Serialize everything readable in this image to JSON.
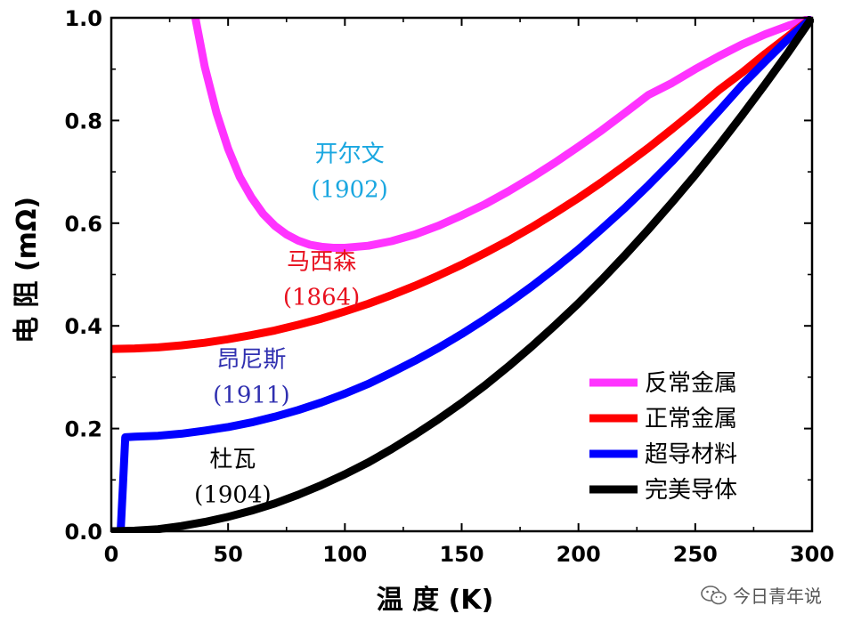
{
  "chart_data": {
    "type": "line",
    "xlabel": "温 度 (K)",
    "ylabel": "电 阻 (mΩ)",
    "xlim": [
      0,
      300
    ],
    "ylim": [
      0,
      1.0
    ],
    "x_ticks": [
      "0",
      "50",
      "100",
      "150",
      "200",
      "250",
      "300"
    ],
    "y_ticks": [
      "0.0",
      "0.2",
      "0.4",
      "0.6",
      "0.8",
      "1.0"
    ],
    "grid": false,
    "legend_placement": "bottom-right",
    "series": [
      {
        "name": "反常金属",
        "color": "#ff33ff",
        "x": [
          36,
          40,
          45,
          50,
          55,
          60,
          65,
          70,
          75,
          80,
          85,
          90,
          95,
          100,
          110,
          120,
          130,
          140,
          150,
          160,
          170,
          180,
          190,
          200,
          210,
          220,
          230,
          240,
          250,
          260,
          270,
          280,
          290,
          300
        ],
        "y": [
          1.0,
          0.905,
          0.815,
          0.745,
          0.69,
          0.65,
          0.618,
          0.595,
          0.578,
          0.566,
          0.558,
          0.554,
          0.552,
          0.552,
          0.556,
          0.565,
          0.578,
          0.595,
          0.615,
          0.637,
          0.662,
          0.689,
          0.718,
          0.749,
          0.781,
          0.815,
          0.85,
          0.873,
          0.9,
          0.925,
          0.948,
          0.968,
          0.985,
          1.0
        ]
      },
      {
        "name": "正常金属",
        "color": "#ff0000",
        "x": [
          0,
          10,
          20,
          30,
          40,
          50,
          60,
          70,
          80,
          90,
          100,
          110,
          120,
          130,
          140,
          150,
          160,
          170,
          180,
          190,
          200,
          210,
          220,
          230,
          240,
          250,
          260,
          270,
          280,
          290,
          300
        ],
        "y": [
          0.355,
          0.356,
          0.358,
          0.362,
          0.367,
          0.374,
          0.382,
          0.391,
          0.402,
          0.414,
          0.428,
          0.443,
          0.46,
          0.478,
          0.498,
          0.519,
          0.542,
          0.566,
          0.592,
          0.62,
          0.649,
          0.68,
          0.713,
          0.747,
          0.783,
          0.82,
          0.859,
          0.893,
          0.93,
          0.965,
          1.0
        ]
      },
      {
        "name": "超导材料",
        "color": "#0000ff",
        "x": [
          3,
          4,
          5,
          6,
          10,
          20,
          30,
          40,
          50,
          60,
          70,
          80,
          90,
          100,
          110,
          120,
          130,
          140,
          150,
          160,
          170,
          180,
          190,
          200,
          210,
          220,
          230,
          240,
          250,
          260,
          270,
          280,
          290,
          300
        ],
        "y": [
          0.0,
          0.0,
          0.09,
          0.183,
          0.184,
          0.186,
          0.19,
          0.196,
          0.203,
          0.212,
          0.223,
          0.236,
          0.251,
          0.268,
          0.287,
          0.309,
          0.332,
          0.357,
          0.384,
          0.413,
          0.444,
          0.477,
          0.512,
          0.549,
          0.589,
          0.63,
          0.674,
          0.72,
          0.768,
          0.818,
          0.869,
          0.915,
          0.96,
          1.0
        ]
      },
      {
        "name": "完美导体",
        "color": "#000000",
        "x": [
          0,
          10,
          20,
          30,
          40,
          50,
          60,
          70,
          80,
          90,
          100,
          110,
          120,
          130,
          140,
          150,
          160,
          170,
          180,
          190,
          200,
          210,
          220,
          230,
          240,
          250,
          260,
          270,
          280,
          290,
          300
        ],
        "y": [
          0.0,
          0.001,
          0.004,
          0.01,
          0.018,
          0.028,
          0.04,
          0.054,
          0.071,
          0.09,
          0.111,
          0.134,
          0.16,
          0.188,
          0.218,
          0.25,
          0.284,
          0.321,
          0.36,
          0.401,
          0.444,
          0.49,
          0.538,
          0.588,
          0.64,
          0.694,
          0.751,
          0.81,
          0.871,
          0.934,
          1.0
        ]
      }
    ],
    "annotations": [
      {
        "name": "开尔文",
        "year": "(1902)",
        "color": "#1aa7e0",
        "x": 102,
        "y": 0.72
      },
      {
        "name": "马西森",
        "year": "(1864)",
        "color": "#e8101e",
        "x": 90,
        "y": 0.51
      },
      {
        "name": "昂尼斯",
        "year": "(1911)",
        "color": "#3030b0",
        "x": 60,
        "y": 0.32
      },
      {
        "name": "杜瓦",
        "year": "(1904)",
        "color": "#000000",
        "x": 52,
        "y": 0.126
      }
    ]
  },
  "watermark": {
    "icon": "wechat-icon",
    "text": "今日青年说"
  }
}
